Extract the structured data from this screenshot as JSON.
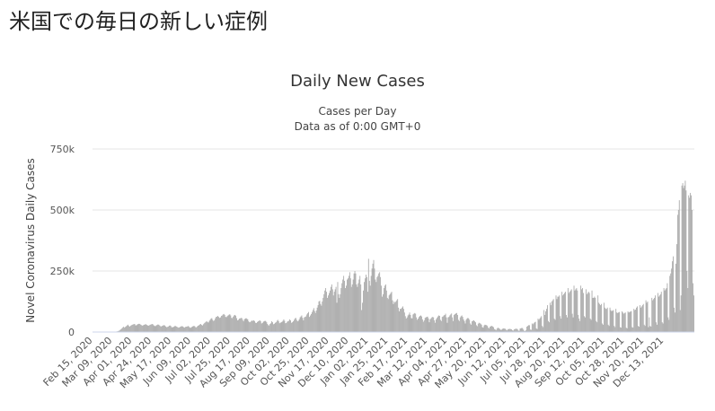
{
  "page_title": "米国での毎日の新しい症例",
  "chart_data": {
    "type": "bar",
    "title": "Daily New Cases",
    "subtitle": [
      "Cases per Day",
      "Data as of 0:00 GMT+0"
    ],
    "y_label": "Novel Coronavirus Daily Cases",
    "color": "#a3a3a3",
    "grid": true,
    "ylim": [
      0,
      750000
    ],
    "yticks": [
      0,
      {
        "value": 250000,
        "label": "250k"
      },
      {
        "value": 500000,
        "label": "500k"
      },
      {
        "value": 750000,
        "label": "750k"
      }
    ],
    "categories": [
      "Feb 15, 2020",
      null,
      null,
      null,
      null,
      null,
      null,
      null,
      null,
      null,
      null,
      null,
      null,
      null,
      null,
      null,
      null,
      null,
      null,
      null,
      null,
      null,
      null,
      "Mar 09, 2020",
      null,
      null,
      null,
      null,
      null,
      null,
      null,
      null,
      null,
      null,
      null,
      null,
      null,
      null,
      null,
      null,
      null,
      null,
      null,
      null,
      null,
      null,
      "Apr 01, 2020",
      null,
      null,
      null,
      null,
      null,
      null,
      null,
      null,
      null,
      null,
      null,
      null,
      null,
      null,
      null,
      null,
      null,
      null,
      null,
      null,
      null,
      null,
      "Apr 24, 2020",
      null,
      null,
      null,
      null,
      null,
      null,
      null,
      null,
      null,
      null,
      null,
      null,
      null,
      null,
      null,
      null,
      null,
      null,
      null,
      null,
      null,
      null,
      "May 17, 2020",
      null,
      null,
      null,
      null,
      null,
      null,
      null,
      null,
      null,
      null,
      null,
      null,
      null,
      null,
      null,
      null,
      null,
      null,
      null,
      null,
      null,
      null,
      "Jun 09, 2020",
      null,
      null,
      null,
      null,
      null,
      null,
      null,
      null,
      null,
      null,
      null,
      null,
      null,
      null,
      null,
      null,
      null,
      null,
      null,
      null,
      null,
      null,
      "Jul 02, 2020",
      null,
      null,
      null,
      null,
      null,
      null,
      null,
      null,
      null,
      null,
      null,
      null,
      null,
      null,
      null,
      null,
      null,
      null,
      null,
      null,
      null,
      null,
      "Jul 25, 2020",
      null,
      null,
      null,
      null,
      null,
      null,
      null,
      null,
      null,
      null,
      null,
      null,
      null,
      null,
      null,
      null,
      null,
      null,
      null,
      null,
      null,
      null,
      "Aug 17, 2020",
      null,
      null,
      null,
      null,
      null,
      null,
      null,
      null,
      null,
      null,
      null,
      null,
      null,
      null,
      null,
      null,
      null,
      null,
      null,
      null,
      null,
      null,
      "Sep 09, 2020",
      null,
      null,
      null,
      null,
      null,
      null,
      null,
      null,
      null,
      null,
      null,
      null,
      null,
      null,
      null,
      null,
      null,
      null,
      null,
      null,
      null,
      null,
      "Oct 02, 2020",
      null,
      null,
      null,
      null,
      null,
      null,
      null,
      null,
      null,
      null,
      null,
      null,
      null,
      null,
      null,
      null,
      null,
      null,
      null,
      null,
      null,
      null,
      "Oct 25, 2020",
      null,
      null,
      null,
      null,
      null,
      null,
      null,
      null,
      null,
      null,
      null,
      null,
      null,
      null,
      null,
      null,
      null,
      null,
      null,
      null,
      null,
      null,
      "Nov 17, 2020",
      null,
      null,
      null,
      null,
      null,
      null,
      null,
      null,
      null,
      null,
      null,
      null,
      null,
      null,
      null,
      null,
      null,
      null,
      null,
      null,
      null,
      null,
      "Dec 10, 2020",
      null,
      null,
      null,
      null,
      null,
      null,
      null,
      null,
      null,
      null,
      null,
      null,
      null,
      null,
      null,
      null,
      null,
      null,
      null,
      null,
      null,
      null,
      "Jan 02, 2021",
      null,
      null,
      null,
      null,
      null,
      null,
      null,
      null,
      null,
      null,
      null,
      null,
      null,
      null,
      null,
      null,
      null,
      null,
      null,
      null,
      null,
      null,
      "Jan 25, 2021",
      null,
      null,
      null,
      null,
      null,
      null,
      null,
      null,
      null,
      null,
      null,
      null,
      null,
      null,
      null,
      null,
      null,
      null,
      null,
      null,
      null,
      null,
      "Feb 17, 2021",
      null,
      null,
      null,
      null,
      null,
      null,
      null,
      null,
      null,
      null,
      null,
      null,
      null,
      null,
      null,
      null,
      null,
      null,
      null,
      null,
      null,
      null,
      "Mar 12, 2021",
      null,
      null,
      null,
      null,
      null,
      null,
      null,
      null,
      null,
      null,
      null,
      null,
      null,
      null,
      null,
      null,
      null,
      null,
      null,
      null,
      null,
      null,
      "Apr 04, 2021",
      null,
      null,
      null,
      null,
      null,
      null,
      null,
      null,
      null,
      null,
      null,
      null,
      null,
      null,
      null,
      null,
      null,
      null,
      null,
      null,
      null,
      null,
      "Apr 27, 2021",
      null,
      null,
      null,
      null,
      null,
      null,
      null,
      null,
      null,
      null,
      null,
      null,
      null,
      null,
      null,
      null,
      null,
      null,
      null,
      null,
      null,
      null,
      "May 20, 2021",
      null,
      null,
      null,
      null,
      null,
      null,
      null,
      null,
      null,
      null,
      null,
      null,
      null,
      null,
      null,
      null,
      null,
      null,
      null,
      null,
      null,
      null,
      "Jun 12, 2021",
      null,
      null,
      null,
      null,
      null,
      null,
      null,
      null,
      null,
      null,
      null,
      null,
      null,
      null,
      null,
      null,
      null,
      null,
      null,
      null,
      null,
      null,
      "Jul 05, 2021",
      null,
      null,
      null,
      null,
      null,
      null,
      null,
      null,
      null,
      null,
      null,
      null,
      null,
      null,
      null,
      null,
      null,
      null,
      null,
      null,
      null,
      null,
      "Jul 28, 2021",
      null,
      null,
      null,
      null,
      null,
      null,
      null,
      null,
      null,
      null,
      null,
      null,
      null,
      null,
      null,
      null,
      null,
      null,
      null,
      null,
      null,
      null,
      "Aug 20, 2021",
      null,
      null,
      null,
      null,
      null,
      null,
      null,
      null,
      null,
      null,
      null,
      null,
      null,
      null,
      null,
      null,
      null,
      null,
      null,
      null,
      null,
      null,
      "Sep 12, 2021",
      null,
      null,
      null,
      null,
      null,
      null,
      null,
      null,
      null,
      null,
      null,
      null,
      null,
      null,
      null,
      null,
      null,
      null,
      null,
      null,
      null,
      null,
      "Oct 05, 2021",
      null,
      null,
      null,
      null,
      null,
      null,
      null,
      null,
      null,
      null,
      null,
      null,
      null,
      null,
      null,
      null,
      null,
      null,
      null,
      null,
      null,
      null,
      "Oct 28, 2021",
      null,
      null,
      null,
      null,
      null,
      null,
      null,
      null,
      null,
      null,
      null,
      null,
      null,
      null,
      null,
      null,
      null,
      null,
      null,
      null,
      null,
      null,
      "Nov 20, 2021",
      null,
      null,
      null,
      null,
      null,
      null,
      null,
      null,
      null,
      null,
      null,
      null,
      null,
      null,
      null,
      null,
      null,
      null,
      null,
      null,
      null,
      null,
      "Dec 13, 2021",
      null,
      null,
      null,
      null,
      null,
      null,
      null,
      null,
      null,
      null,
      null,
      null,
      null,
      null,
      null,
      null,
      null,
      null,
      null,
      null,
      null,
      null,
      null,
      null,
      null,
      null,
      null,
      null,
      null,
      null,
      null,
      null,
      null,
      null,
      null
    ],
    "values": [
      0,
      0,
      0,
      0,
      0,
      0,
      0,
      0,
      0,
      0,
      0,
      0,
      0,
      0,
      0,
      0,
      0,
      0,
      100,
      100,
      200,
      300,
      400,
      500,
      700,
      1000,
      1200,
      1700,
      2500,
      3000,
      4500,
      6000,
      9000,
      12000,
      15000,
      19000,
      22000,
      18000,
      21000,
      24000,
      27000,
      30000,
      25000,
      22000,
      26000,
      28000,
      30000,
      31000,
      33000,
      32000,
      27000,
      28000,
      31000,
      33000,
      34000,
      33000,
      30000,
      28000,
      26000,
      28000,
      30000,
      31000,
      32000,
      29000,
      27000,
      26000,
      28000,
      30000,
      31000,
      33000,
      32000,
      28000,
      25000,
      24000,
      27000,
      29000,
      31000,
      30000,
      27000,
      24000,
      23000,
      25000,
      27000,
      28000,
      27000,
      23000,
      20000,
      21000,
      22000,
      26000,
      27000,
      25000,
      20000,
      19000,
      21000,
      22000,
      26000,
      24000,
      22000,
      20000,
      18000,
      19000,
      21000,
      23000,
      24000,
      23000,
      20000,
      18000,
      21000,
      22000,
      22000,
      25000,
      23000,
      19000,
      17000,
      19000,
      22000,
      24000,
      25000,
      24000,
      20000,
      19000,
      23000,
      26000,
      28000,
      31000,
      33000,
      29000,
      27000,
      32000,
      36000,
      39000,
      42000,
      45000,
      41000,
      39000,
      46000,
      50000,
      55000,
      57000,
      50000,
      45000,
      48000,
      56000,
      62000,
      63000,
      66000,
      62000,
      58000,
      60000,
      66000,
      68000,
      72000,
      74000,
      70000,
      62000,
      61000,
      65000,
      68000,
      71000,
      73000,
      68000,
      58000,
      57000,
      63000,
      68000,
      70000,
      67000,
      57000,
      48000,
      50000,
      55000,
      56000,
      58000,
      57000,
      50000,
      44000,
      52000,
      55000,
      57000,
      54000,
      52000,
      44000,
      40000,
      41000,
      45000,
      47000,
      46000,
      48000,
      45000,
      38000,
      37000,
      41000,
      44000,
      46000,
      48000,
      44000,
      35000,
      37000,
      42000,
      44000,
      46000,
      45000,
      40000,
      33000,
      28000,
      27000,
      33000,
      36000,
      44000,
      40000,
      32000,
      34000,
      38000,
      40000,
      46000,
      50000,
      44000,
      36000,
      38000,
      40000,
      42000,
      46000,
      52000,
      46000,
      36000,
      37000,
      42000,
      44000,
      46000,
      52000,
      48000,
      38000,
      40000,
      44000,
      50000,
      56000,
      58000,
      50000,
      44000,
      46000,
      52000,
      60000,
      64000,
      68000,
      58000,
      48000,
      60000,
      62000,
      64000,
      72000,
      77000,
      82000,
      62000,
      68000,
      74000,
      82000,
      90000,
      98000,
      86000,
      78000,
      88000,
      100000,
      110000,
      125000,
      128000,
      115000,
      108000,
      125000,
      140000,
      155000,
      170000,
      180000,
      165000,
      140000,
      150000,
      160000,
      170000,
      185000,
      195000,
      175000,
      150000,
      165000,
      175000,
      185000,
      120000,
      205000,
      155000,
      140000,
      155000,
      180000,
      200000,
      215000,
      230000,
      210000,
      180000,
      190000,
      215000,
      220000,
      230000,
      245000,
      220000,
      185000,
      195000,
      215000,
      240000,
      250000,
      240000,
      195000,
      185000,
      200000,
      215000,
      230000,
      195000,
      90000,
      120000,
      170000,
      205000,
      220000,
      235000,
      225000,
      165000,
      300000,
      210000,
      190000,
      230000,
      260000,
      280000,
      295000,
      260000,
      215000,
      205000,
      225000,
      230000,
      240000,
      245000,
      225000,
      190000,
      145000,
      155000,
      180000,
      190000,
      195000,
      170000,
      140000,
      135000,
      150000,
      155000,
      160000,
      165000,
      130000,
      115000,
      125000,
      120000,
      125000,
      130000,
      135000,
      100000,
      85000,
      95000,
      95000,
      100000,
      105000,
      95000,
      80000,
      65000,
      55000,
      60000,
      68000,
      72000,
      80000,
      70000,
      57000,
      56000,
      72000,
      75000,
      78000,
      75000,
      60000,
      50000,
      55000,
      62000,
      66000,
      68000,
      64000,
      52000,
      42000,
      48000,
      58000,
      60000,
      62000,
      63000,
      56000,
      40000,
      52000,
      56000,
      60000,
      62000,
      60000,
      48000,
      38000,
      52000,
      58000,
      64000,
      68000,
      66000,
      50000,
      45000,
      62000,
      64000,
      68000,
      70000,
      75000,
      60000,
      38000,
      60000,
      62000,
      68000,
      72000,
      76000,
      60000,
      45000,
      70000,
      74000,
      76000,
      78000,
      70000,
      50000,
      45000,
      60000,
      65000,
      68000,
      62000,
      52000,
      45000,
      35000,
      50000,
      55000,
      58000,
      56000,
      50000,
      35000,
      30000,
      44000,
      46000,
      48000,
      44000,
      40000,
      28000,
      24000,
      34000,
      38000,
      36000,
      34000,
      30000,
      20000,
      18000,
      27000,
      30000,
      29000,
      28000,
      25000,
      18000,
      15000,
      22000,
      24000,
      25000,
      23000,
      20000,
      12000,
      10000,
      8000,
      14000,
      18000,
      16000,
      14000,
      10000,
      8000,
      12000,
      14000,
      15000,
      14000,
      13000,
      9000,
      7000,
      12000,
      12000,
      13000,
      12000,
      11000,
      7000,
      6000,
      11000,
      12000,
      14000,
      13000,
      12000,
      6000,
      5000,
      14000,
      15000,
      17000,
      16000,
      10000,
      5000,
      4000,
      8000,
      22000,
      25000,
      28000,
      28000,
      10000,
      9000,
      35000,
      32000,
      36000,
      40000,
      42000,
      15000,
      12000,
      55000,
      50000,
      55000,
      60000,
      65000,
      25000,
      20000,
      90000,
      70000,
      85000,
      95000,
      110000,
      45000,
      40000,
      120000,
      110000,
      125000,
      130000,
      135000,
      55000,
      50000,
      150000,
      135000,
      145000,
      145000,
      150000,
      65000,
      55000,
      165000,
      150000,
      155000,
      160000,
      165000,
      70000,
      60000,
      180000,
      160000,
      165000,
      170000,
      175000,
      75000,
      60000,
      190000,
      170000,
      175000,
      180000,
      170000,
      70000,
      55000,
      45000,
      190000,
      175000,
      180000,
      160000,
      65000,
      60000,
      175000,
      155000,
      160000,
      165000,
      160000,
      55000,
      50000,
      170000,
      140000,
      140000,
      145000,
      140000,
      45000,
      40000,
      150000,
      120000,
      115000,
      110000,
      115000,
      35000,
      30000,
      120000,
      100000,
      95000,
      95000,
      100000,
      30000,
      25000,
      100000,
      90000,
      85000,
      88000,
      90000,
      25000,
      20000,
      95000,
      80000,
      78000,
      80000,
      82000,
      20000,
      18000,
      85000,
      80000,
      75000,
      78000,
      80000,
      18000,
      15000,
      85000,
      80000,
      82000,
      84000,
      86000,
      20000,
      18000,
      95000,
      90000,
      92000,
      100000,
      105000,
      25000,
      22000,
      110000,
      100000,
      105000,
      110000,
      115000,
      30000,
      25000,
      130000,
      120000,
      125000,
      20000,
      60000,
      25000,
      22000,
      140000,
      130000,
      135000,
      140000,
      150000,
      40000,
      30000,
      160000,
      145000,
      150000,
      155000,
      165000,
      40000,
      35000,
      180000,
      170000,
      175000,
      180000,
      200000,
      60000,
      50000,
      230000,
      240000,
      260000,
      290000,
      310000,
      100000,
      80000,
      280000,
      360000,
      480000,
      500000,
      540000,
      90000,
      150000,
      600000,
      610000,
      590000,
      600000,
      620000,
      580000,
      250000,
      180000,
      560000,
      550000,
      570000,
      560000,
      500000,
      200000,
      150000
    ]
  }
}
